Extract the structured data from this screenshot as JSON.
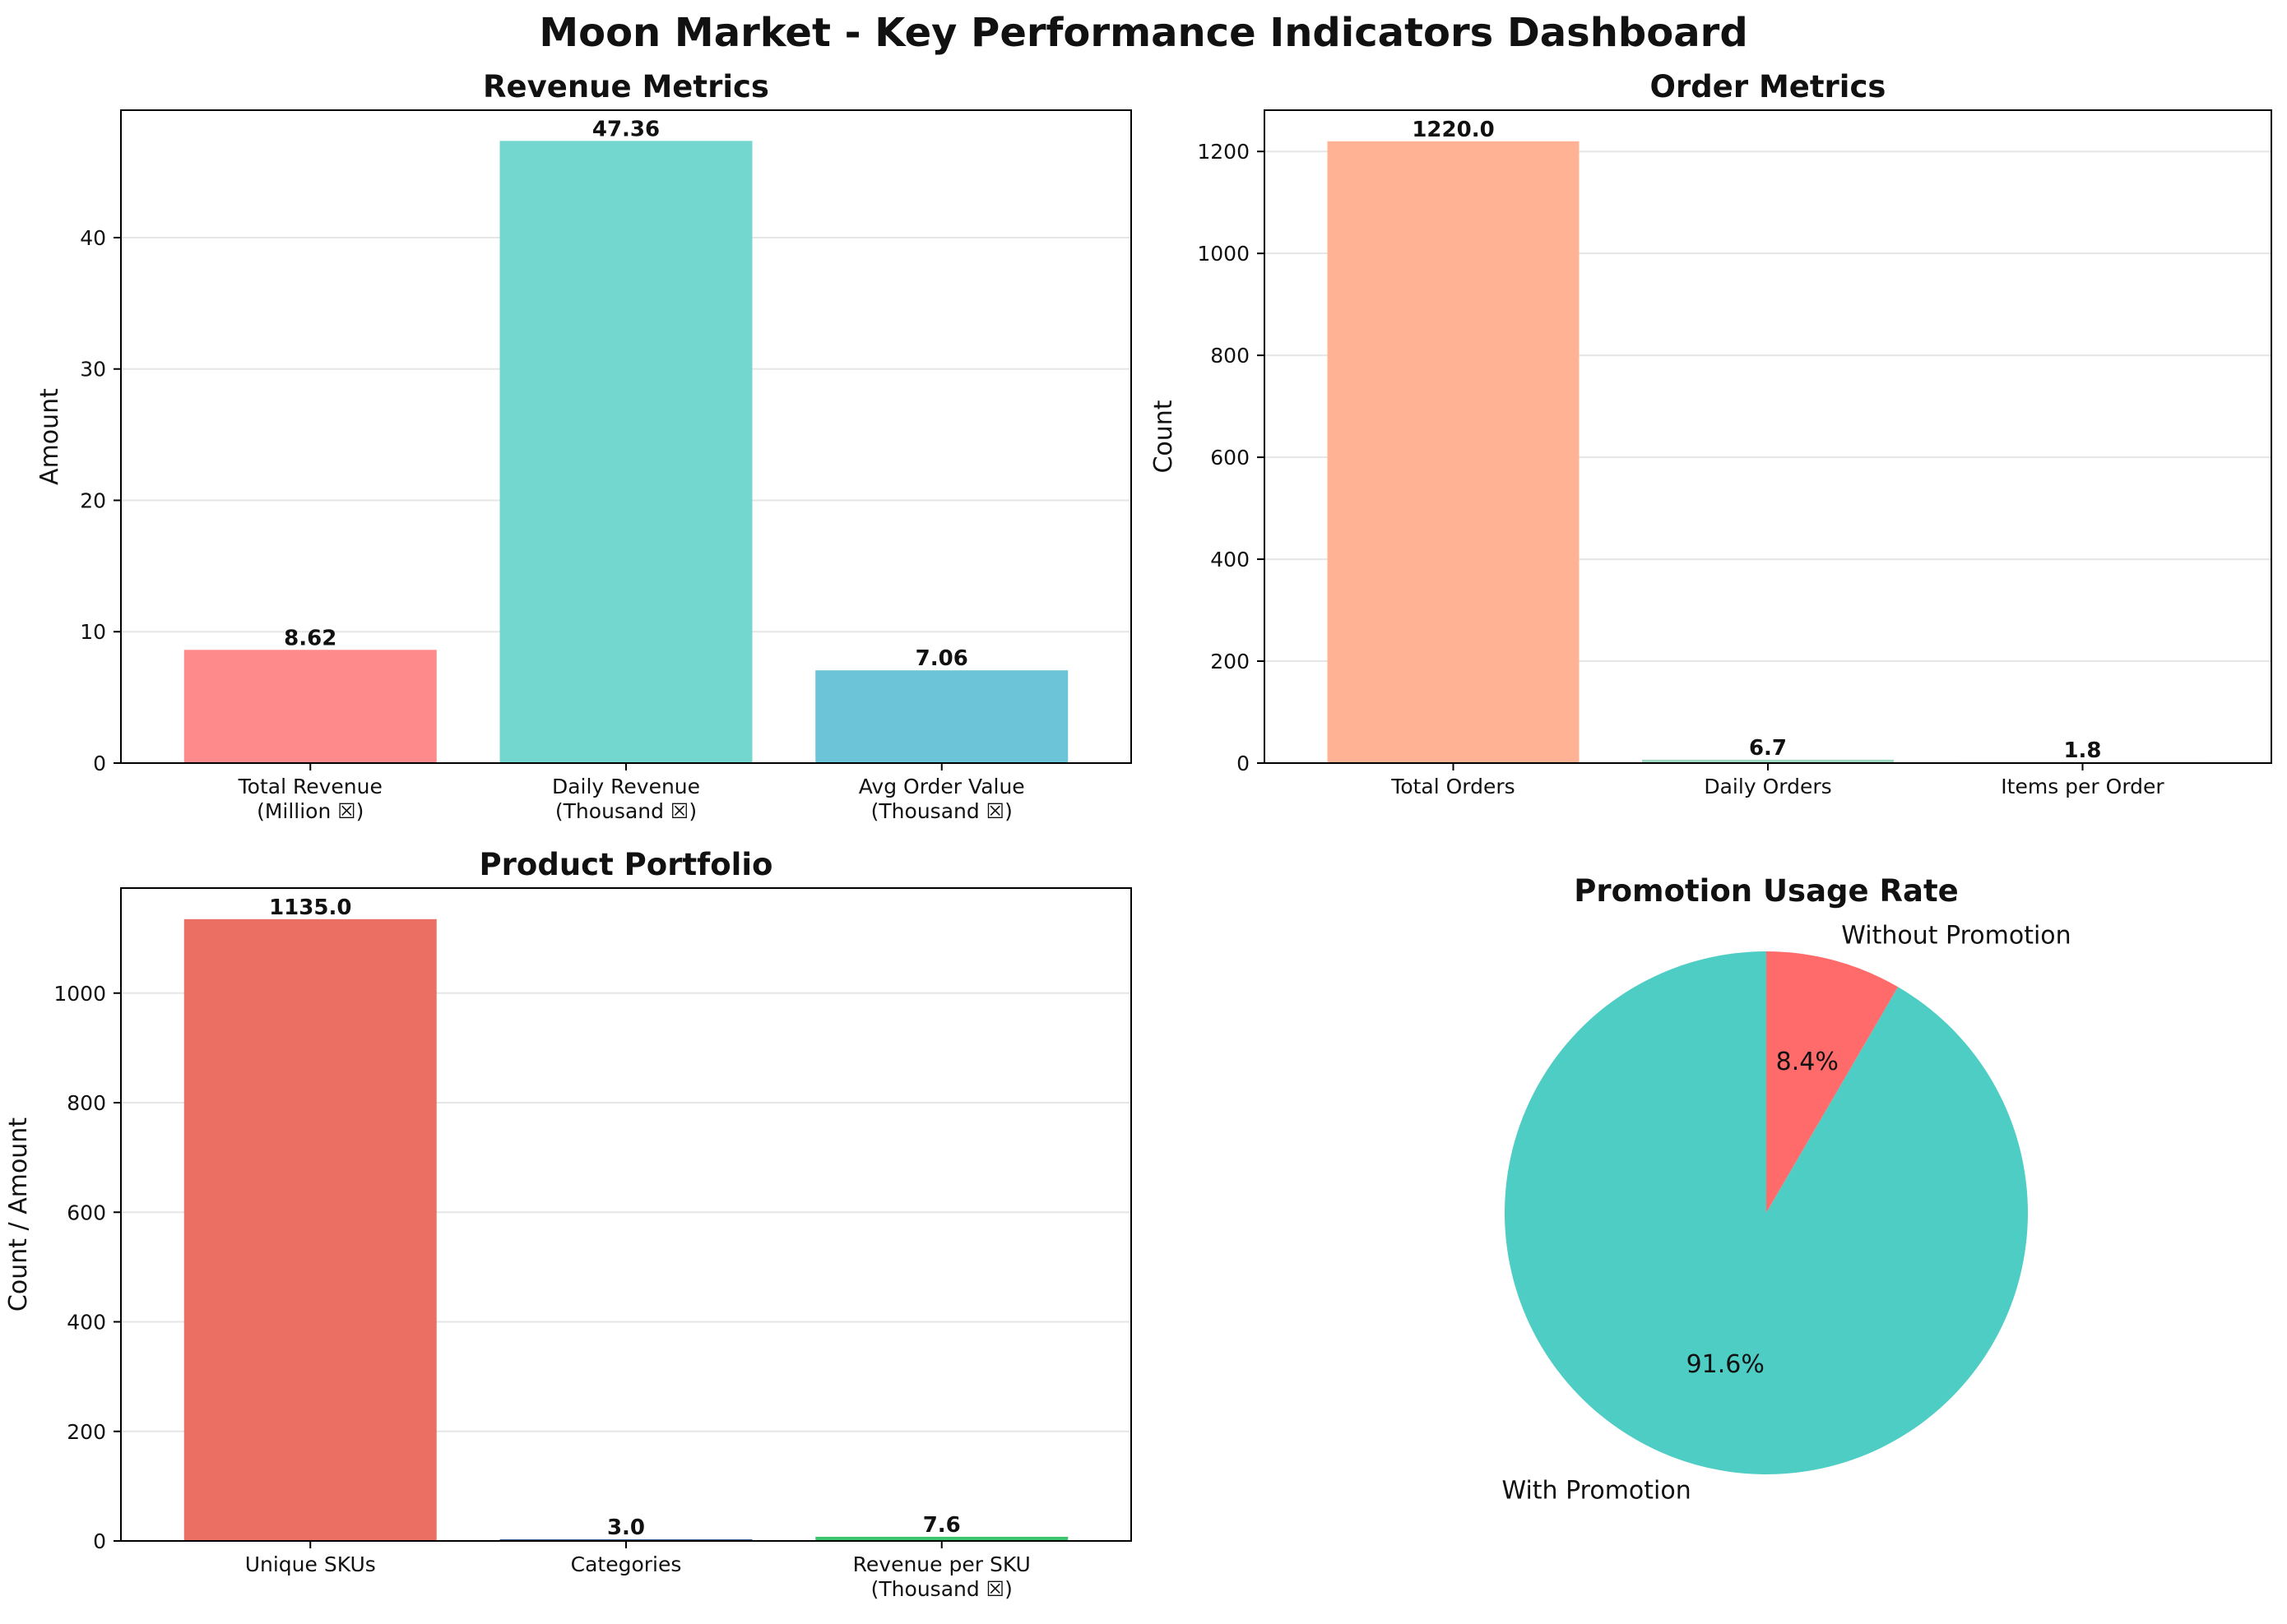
{
  "page_title": "Moon Market - Key Performance Indicators Dashboard",
  "chart_data": [
    {
      "type": "bar",
      "title": "Revenue Metrics",
      "xlabel": "",
      "ylabel": "Amount",
      "categories": [
        "Total Revenue\n(Million ☒)",
        "Daily Revenue\n(Thousand ☒)",
        "Avg Order Value\n(Thousand ☒)"
      ],
      "values": [
        8.62,
        47.36,
        7.06
      ],
      "value_labels": [
        "8.62",
        "47.36",
        "7.06"
      ],
      "colors": [
        "#ff8a8c",
        "#74d7cf",
        "#6bc4d8"
      ],
      "ylim": [
        0,
        49.7
      ],
      "yticks": [
        0,
        10,
        20,
        30,
        40
      ],
      "grid": "y"
    },
    {
      "type": "bar",
      "title": "Order Metrics",
      "xlabel": "",
      "ylabel": "Count",
      "categories": [
        "Total Orders",
        "Daily Orders",
        "Items per Order"
      ],
      "values": [
        1220.0,
        6.7,
        1.8
      ],
      "value_labels": [
        "1220.0",
        "6.7",
        "1.8"
      ],
      "colors": [
        "#ffb394",
        "#9ed9c0",
        "#cfe8cf"
      ],
      "ylim": [
        0,
        1281
      ],
      "yticks": [
        0,
        200,
        400,
        600,
        800,
        1000,
        1200
      ],
      "grid": "y"
    },
    {
      "type": "bar",
      "title": "Product Portfolio",
      "xlabel": "",
      "ylabel": "Count / Amount",
      "categories": [
        "Unique SKUs",
        "Categories",
        "Revenue per SKU\n(Thousand ☒)"
      ],
      "values": [
        1135.0,
        3.0,
        7.6
      ],
      "value_labels": [
        "1135.0",
        "3.0",
        "7.6"
      ],
      "colors": [
        "#eb6f63",
        "#2e5b8c",
        "#3cc46d"
      ],
      "ylim": [
        0,
        1191.75
      ],
      "yticks": [
        0,
        200,
        400,
        600,
        800,
        1000
      ],
      "grid": "y"
    },
    {
      "type": "pie",
      "title": "Promotion Usage Rate",
      "labels": [
        "Without Promotion",
        "With Promotion"
      ],
      "values": [
        8.4,
        91.6
      ],
      "pct_labels": [
        "8.4%",
        "91.6%"
      ],
      "colors": [
        "#ff6b6b",
        "#4ecdc4"
      ],
      "startangle": 90,
      "direction": "clockwise"
    }
  ]
}
